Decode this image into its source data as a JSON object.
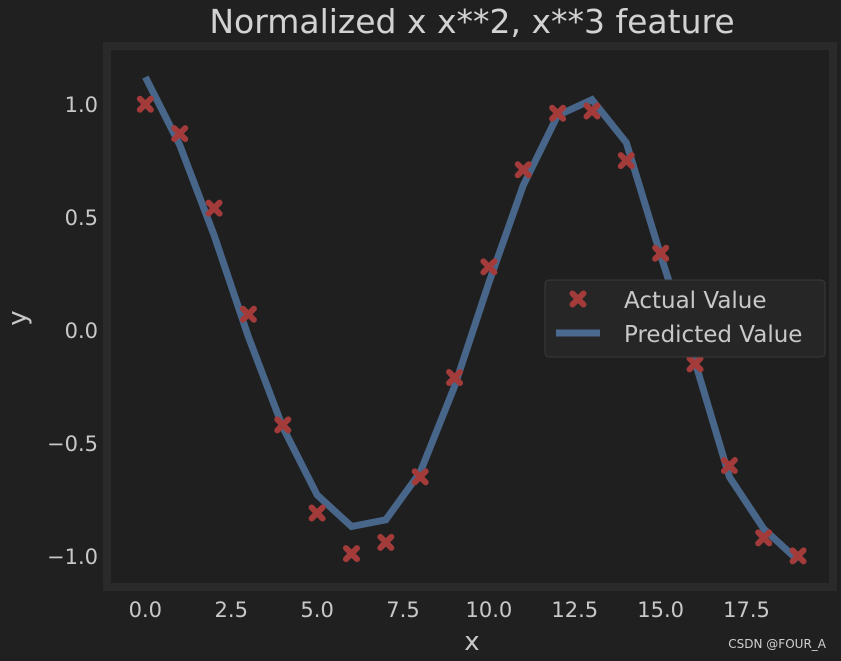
{
  "watermark": "CSDN @FOUR_A",
  "colors": {
    "background": "#202020",
    "plot_background": "#2a2a2a",
    "actual": "#a33b3b",
    "predicted": "#4a6a8f",
    "text": "#c8c8c8"
  },
  "chart_data": {
    "type": "scatter",
    "title": "Normalized x x**2, x**3 feature",
    "xlabel": "x",
    "ylabel": "y",
    "xlim": [
      -1,
      19.9
    ],
    "ylim": [
      -1.12,
      1.24
    ],
    "grid": false,
    "legend_position": "center-right",
    "xticks": [
      0,
      2.5,
      5,
      7.5,
      10,
      12.5,
      15,
      17.5
    ],
    "xtick_labels": [
      "0.0",
      "2.5",
      "5.0",
      "7.5",
      "10.0",
      "12.5",
      "15.0",
      "17.5"
    ],
    "yticks": [
      1.0,
      0.5,
      0.0,
      -0.5,
      -1.0
    ],
    "ytick_labels": [
      "1.0",
      "0.5",
      "0.0",
      "−0.5",
      "−1.0"
    ],
    "series": [
      {
        "name": "Actual Value",
        "kind": "scatter",
        "marker": "X",
        "color": "#a33b3b",
        "x": [
          0,
          1,
          2,
          3,
          4,
          5,
          6,
          7,
          8,
          9,
          10,
          11,
          12,
          13,
          14,
          15,
          16,
          17,
          18,
          19
        ],
        "y": [
          1.0,
          0.87,
          0.54,
          0.07,
          -0.42,
          -0.81,
          -0.99,
          -0.94,
          -0.65,
          -0.21,
          0.28,
          0.71,
          0.96,
          0.97,
          0.75,
          0.34,
          -0.15,
          -0.6,
          -0.92,
          -1.0
        ]
      },
      {
        "name": "Predicted Value",
        "kind": "line",
        "color": "#4a6a8f",
        "x": [
          0,
          1,
          2,
          3,
          4,
          5,
          6,
          7,
          8,
          9,
          10,
          11,
          12,
          13,
          14,
          15,
          16,
          17,
          18,
          19
        ],
        "y": [
          1.12,
          0.82,
          0.42,
          -0.03,
          -0.43,
          -0.73,
          -0.87,
          -0.84,
          -0.63,
          -0.25,
          0.21,
          0.64,
          0.95,
          1.02,
          0.83,
          0.33,
          -0.14,
          -0.65,
          -0.88,
          -1.02
        ]
      }
    ]
  }
}
